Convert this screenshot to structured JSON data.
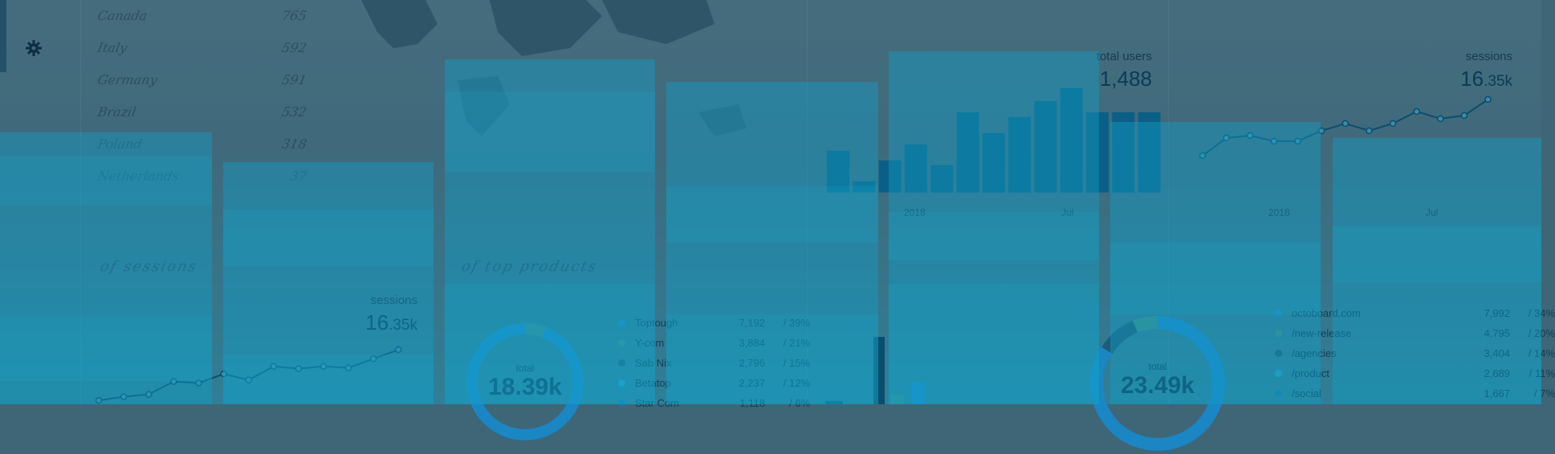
{
  "sidebar": {
    "icon": "gear-icon"
  },
  "countries": [
    {
      "name": "Canada",
      "value": "765"
    },
    {
      "name": "Italy",
      "value": "592"
    },
    {
      "name": "Germany",
      "value": "591"
    },
    {
      "name": "Brazil",
      "value": "532"
    },
    {
      "name": "Poland",
      "value": "318"
    },
    {
      "name": "Netherlands",
      "value": "37"
    }
  ],
  "sections": {
    "left": "of sessions",
    "mid": "of top products"
  },
  "total_users": {
    "label": "total users",
    "value": "1,488"
  },
  "sessions_top": {
    "label": "sessions",
    "value": "16",
    "suffix": ".35k"
  },
  "sessions_left": {
    "label": "sessions",
    "value": "16",
    "suffix": ".35k"
  },
  "axis": {
    "year": "2018",
    "month": "Jul"
  },
  "products": {
    "total_label": "total",
    "total": "18.39k",
    "items": [
      {
        "name": "Toptough",
        "value": "7,192",
        "pct": "/ 39%",
        "color": "#1a86c4"
      },
      {
        "name": "Y-com",
        "value": "3,884",
        "pct": "/ 21%",
        "color": "#3d8a86"
      },
      {
        "name": "Sab Nix",
        "value": "2,796",
        "pct": "/ 15%",
        "color": "#205a79"
      },
      {
        "name": "Betatop",
        "value": "2,237",
        "pct": "/ 12%",
        "color": "#1ba1c9"
      },
      {
        "name": "Star Com",
        "value": "1,118",
        "pct": "/ 6%",
        "color": "#1878a8"
      }
    ]
  },
  "pages": {
    "total_label": "total",
    "total": "23.49k",
    "items": [
      {
        "name": "octoboard.com",
        "value": "7,992",
        "pct": "/ 34%",
        "color": "#1a86c4"
      },
      {
        "name": "/new-release",
        "value": "4,795",
        "pct": "/ 20%",
        "color": "#3d8a86"
      },
      {
        "name": "/agencies",
        "value": "3,404",
        "pct": "/ 14%",
        "color": "#205a79"
      },
      {
        "name": "/product",
        "value": "2,689",
        "pct": "/ 11%",
        "color": "#1ba1c9"
      },
      {
        "name": "/social",
        "value": "1,667",
        "pct": "/ 7%",
        "color": "#1878a8"
      }
    ]
  },
  "chart_data": [
    {
      "type": "bar",
      "title": "total users",
      "categories": [
        "",
        "",
        "",
        "",
        "",
        "",
        "",
        "",
        "",
        "",
        "",
        "",
        ""
      ],
      "values": [
        52,
        14,
        40,
        60,
        34,
        100,
        74,
        94,
        114,
        130,
        100,
        100,
        100
      ],
      "ylim": [
        0,
        140
      ]
    },
    {
      "type": "line",
      "title": "sessions",
      "values": [
        2.6,
        4.8,
        5.1,
        4.4,
        4.4,
        5.7,
        6.6,
        5.7,
        6.6,
        8.1,
        7.2,
        7.6,
        9.6
      ],
      "ylim": [
        0,
        11
      ]
    },
    {
      "type": "line",
      "title": "sessions",
      "values": [
        0.5,
        1.0,
        1.3,
        3.0,
        2.8,
        4.0,
        3.2,
        5.0,
        4.7,
        5.0,
        4.8,
        6.0,
        7.2
      ],
      "ylim": [
        0,
        11
      ]
    }
  ],
  "colors": {
    "overlay": "#10a0c8",
    "bar": "#0a5f86",
    "line": "#0b4d6c"
  }
}
